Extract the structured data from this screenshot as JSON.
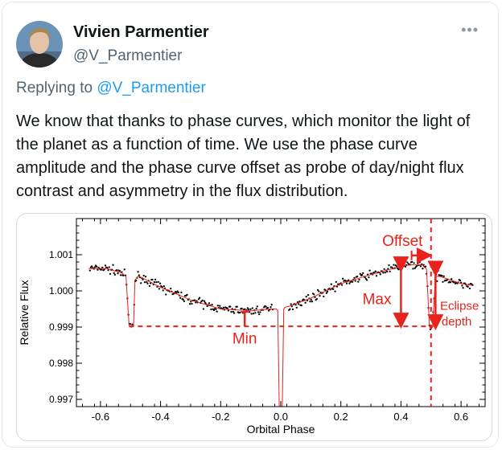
{
  "tweet": {
    "display_name": "Vivien Parmentier",
    "handle": "@V_Parmentier",
    "replying_label": "Replying to",
    "replying_to": "@V_Parmentier",
    "more_icon": "more-icon",
    "text": "We know that thanks to phase curves, which monitor the light of the planet as a function of time. We use the phase curve amplitude and the phase curve offset as probe of day/night flux contrast and asymmetry in the flux distribution."
  },
  "chart_data": {
    "type": "scatter",
    "xlabel": "Orbital Phase",
    "ylabel": "Relative Flux",
    "xlim": [
      -0.68,
      0.68
    ],
    "ylim": [
      0.9968,
      1.002
    ],
    "x_ticks": [
      "-0.6",
      "-0.4",
      "-0.2",
      "0.0",
      "0.2",
      "0.4",
      "0.6"
    ],
    "y_ticks": [
      "0.997",
      "0.998",
      "0.999",
      "1.000",
      "1.001"
    ],
    "x_tick_values": [
      -0.6,
      -0.4,
      -0.2,
      0.0,
      0.2,
      0.4,
      0.6
    ],
    "y_tick_values": [
      0.997,
      0.998,
      0.999,
      1.0,
      1.001
    ],
    "model": {
      "x": [
        -0.64,
        -0.58,
        -0.53,
        -0.515,
        -0.505,
        -0.5,
        -0.49,
        -0.485,
        -0.475,
        -0.47,
        -0.4,
        -0.3,
        -0.2,
        -0.1,
        -0.03,
        -0.015,
        -0.01,
        -0.005,
        0.005,
        0.01,
        0.015,
        0.03,
        0.1,
        0.2,
        0.3,
        0.4,
        0.43,
        0.47,
        0.485,
        0.495,
        0.5,
        0.505,
        0.515,
        0.53,
        0.6,
        0.64
      ],
      "y": [
        1.00062,
        1.00062,
        1.0005,
        1.0004,
        0.99905,
        0.99902,
        0.99905,
        1.0003,
        1.0004,
        1.0004,
        1.0001,
        0.99975,
        0.9995,
        0.99945,
        0.9995,
        0.9995,
        0.99945,
        0.9965,
        0.9965,
        0.9995,
        0.99955,
        0.99958,
        0.9998,
        1.0002,
        1.00045,
        1.00068,
        1.00072,
        1.00072,
        1.0006,
        0.999,
        0.99895,
        0.999,
        1.0004,
        1.0004,
        1.0002,
        1.00015
      ]
    },
    "annotations": {
      "offset_label": "Offset",
      "max_label": "Max",
      "min_label": "Min",
      "eclipse_label_1": "Eclipse",
      "eclipse_label_2": "depth",
      "min_level": 0.99902,
      "eclipse_phase": 0.5,
      "max_phase": 0.43
    },
    "colors": {
      "points": "#000000",
      "model": "#e8231c",
      "annotation": "#e8231c"
    }
  }
}
